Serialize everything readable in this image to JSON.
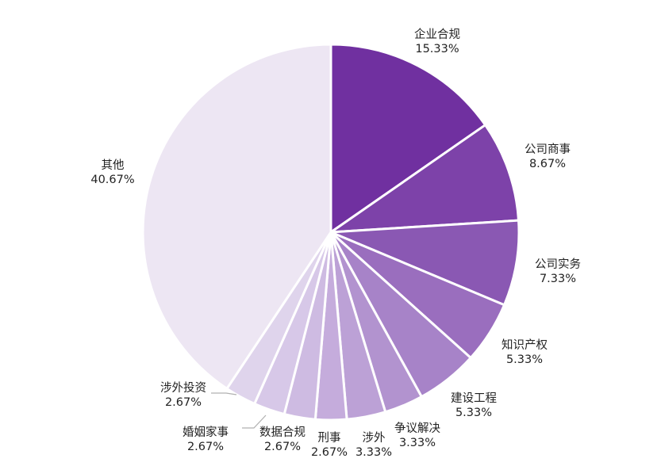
{
  "chart_data": {
    "type": "pie",
    "title": "",
    "slices": [
      {
        "label": "企业合规",
        "value": 15.33,
        "value_text": "15.33%",
        "color": "#7030a0"
      },
      {
        "label": "公司商事",
        "value": 8.67,
        "value_text": "8.67%",
        "color": "#7d42a9"
      },
      {
        "label": "公司实务",
        "value": 7.33,
        "value_text": "7.33%",
        "color": "#8a58b3"
      },
      {
        "label": "知识产权",
        "value": 5.33,
        "value_text": "5.33%",
        "color": "#9a6ebe"
      },
      {
        "label": "建设工程",
        "value": 5.33,
        "value_text": "5.33%",
        "color": "#a783c8"
      },
      {
        "label": "争议解决",
        "value": 3.33,
        "value_text": "3.33%",
        "color": "#b293cf"
      },
      {
        "label": "涉外",
        "value": 3.33,
        "value_text": "3.33%",
        "color": "#bca1d6"
      },
      {
        "label": "刑事",
        "value": 2.67,
        "value_text": "2.67%",
        "color": "#c5acdc"
      },
      {
        "label": "数据合规",
        "value": 2.67,
        "value_text": "2.67%",
        "color": "#cebbe2"
      },
      {
        "label": "婚姻家事",
        "value": 2.67,
        "value_text": "2.67%",
        "color": "#d7c8e8"
      },
      {
        "label": "涉外投资",
        "value": 2.67,
        "value_text": "2.67%",
        "color": "#dfd4ec"
      },
      {
        "label": "其他",
        "value": 40.67,
        "value_text": "40.67%",
        "color": "#ede6f3"
      }
    ],
    "start_angle": "12 o'clock",
    "direction": "clockwise",
    "legend": "none"
  }
}
